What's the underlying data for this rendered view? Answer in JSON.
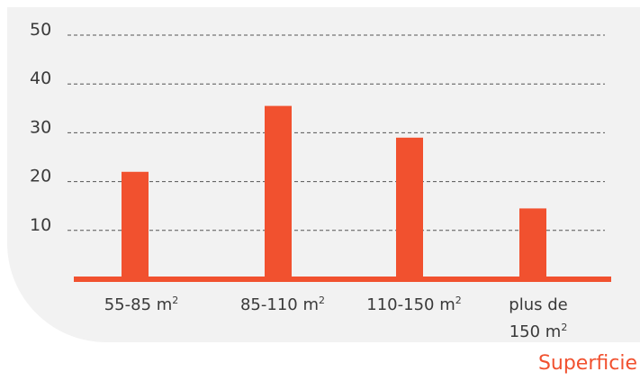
{
  "colors": {
    "bar": "#f1512f",
    "baseline": "#f1512f",
    "grid": "#555555",
    "panel": "#f2f2f2",
    "text": "#3a3a3a"
  },
  "chart_data": {
    "type": "bar",
    "title": "",
    "xlabel": "Superficie",
    "ylabel": "",
    "ylim": [
      0,
      50
    ],
    "yticks": [
      "10",
      "20",
      "30",
      "40",
      "50"
    ],
    "grid": true,
    "categories": [
      {
        "lines": [
          {
            "text": "55-85 m",
            "sup": "2"
          }
        ]
      },
      {
        "lines": [
          {
            "text": "85-110 m",
            "sup": "2"
          }
        ]
      },
      {
        "lines": [
          {
            "text": "110-150 m",
            "sup": "2"
          }
        ]
      },
      {
        "lines": [
          {
            "text": "plus de",
            "sup": ""
          },
          {
            "text": "150 m",
            "sup": "2"
          }
        ]
      }
    ],
    "values": [
      22,
      35.5,
      29,
      14.5
    ]
  }
}
